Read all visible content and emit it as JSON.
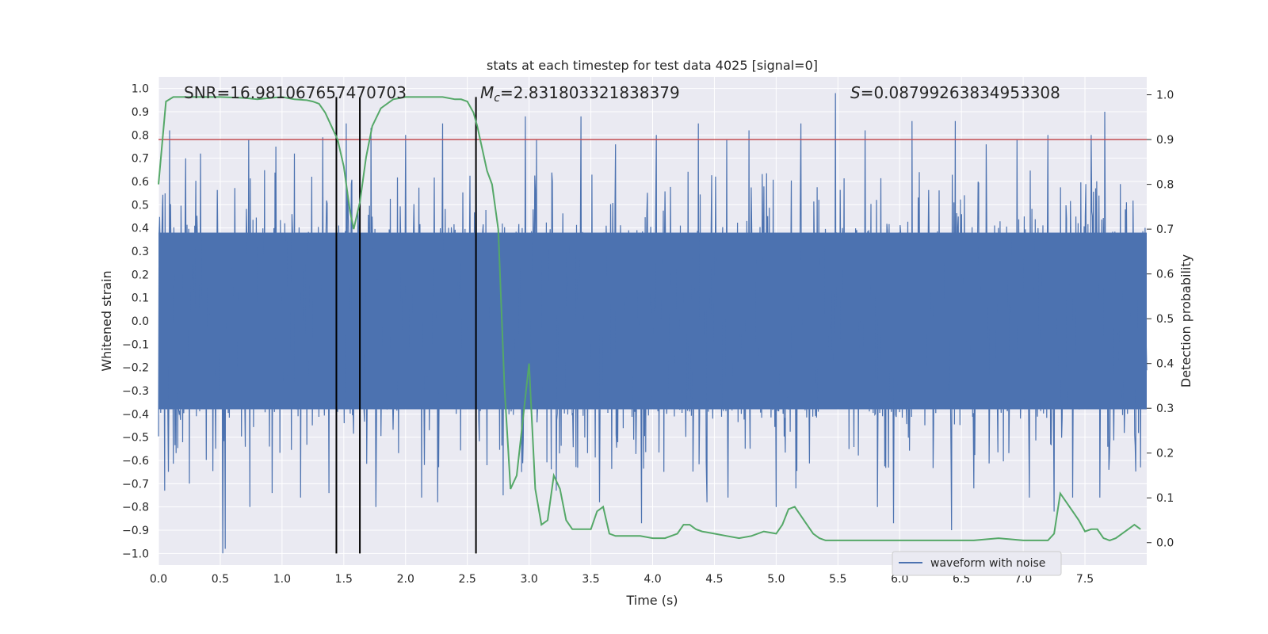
{
  "chart_data": {
    "type": "line",
    "title": "stats at each timestep for test data 4025 [signal=0]",
    "xlabel": "Time (s)",
    "ylabel_left": "Whitened strain",
    "ylabel_right": "Detection probability",
    "xlim": [
      0.0,
      8.0
    ],
    "ylim_left": [
      -1.05,
      1.05
    ],
    "ylim_right": [
      -0.05,
      1.04
    ],
    "xticks": [
      "0.0",
      "0.5",
      "1.0",
      "1.5",
      "2.0",
      "2.5",
      "3.0",
      "3.5",
      "4.0",
      "4.5",
      "5.0",
      "5.5",
      "6.0",
      "6.5",
      "7.0",
      "7.5"
    ],
    "yticks_left": [
      "1.0",
      "0.9",
      "0.8",
      "0.7",
      "0.6",
      "0.5",
      "0.4",
      "0.3",
      "0.2",
      "0.1",
      "0.0",
      "−0.1",
      "−0.2",
      "−0.3",
      "−0.4",
      "−0.5",
      "−0.6",
      "−0.7",
      "−0.8",
      "−0.9",
      "−1.0"
    ],
    "yticks_right": [
      "1.0",
      "0.9",
      "0.8",
      "0.7",
      "0.6",
      "0.5",
      "0.4",
      "0.3",
      "0.2",
      "0.1",
      "0.0"
    ],
    "annotations": {
      "snr": "SNR=16.981067657470703",
      "mc": "=2.831803321838379",
      "mc_symbol": "M",
      "mc_sub": "c",
      "s": "=0.08799263834953308",
      "s_symbol": "S"
    },
    "threshold": 0.9,
    "vertical_lines_time": [
      1.44,
      1.63,
      2.57
    ],
    "waveform": {
      "name": "waveform with noise",
      "color": "#4c72b0",
      "band_upper": 0.38,
      "band_lower": -0.38,
      "positive_peaks": [
        [
          0.05,
          0.75
        ],
        [
          0.09,
          0.82
        ],
        [
          0.22,
          0.7
        ],
        [
          0.34,
          0.72
        ],
        [
          0.52,
          0.78
        ],
        [
          0.73,
          0.78
        ],
        [
          0.95,
          0.75
        ],
        [
          1.1,
          0.72
        ],
        [
          1.33,
          0.79
        ],
        [
          1.52,
          0.85
        ],
        [
          1.72,
          0.83
        ],
        [
          2.0,
          0.8
        ],
        [
          2.3,
          0.85
        ],
        [
          2.57,
          0.85
        ],
        [
          2.97,
          0.88
        ],
        [
          3.06,
          0.78
        ],
        [
          3.42,
          0.88
        ],
        [
          3.7,
          0.76
        ],
        [
          4.03,
          0.8
        ],
        [
          4.37,
          0.85
        ],
        [
          4.6,
          0.78
        ],
        [
          4.78,
          0.82
        ],
        [
          5.2,
          0.85
        ],
        [
          5.48,
          0.98
        ],
        [
          5.72,
          0.82
        ],
        [
          6.1,
          0.86
        ],
        [
          6.45,
          0.86
        ],
        [
          6.7,
          0.76
        ],
        [
          6.95,
          0.78
        ],
        [
          7.2,
          0.8
        ],
        [
          7.55,
          0.8
        ],
        [
          7.66,
          0.9
        ]
      ],
      "negative_peaks": [
        [
          0.05,
          -0.73
        ],
        [
          0.25,
          -0.7
        ],
        [
          0.52,
          -1.0
        ],
        [
          0.54,
          -0.98
        ],
        [
          0.74,
          -0.8
        ],
        [
          0.92,
          -0.74
        ],
        [
          1.15,
          -0.76
        ],
        [
          1.38,
          -0.74
        ],
        [
          1.76,
          -0.8
        ],
        [
          2.13,
          -0.76
        ],
        [
          2.26,
          -0.78
        ],
        [
          2.79,
          -0.75
        ],
        [
          3.22,
          -0.73
        ],
        [
          3.57,
          -0.78
        ],
        [
          3.91,
          -0.87
        ],
        [
          4.44,
          -0.78
        ],
        [
          4.61,
          -0.76
        ],
        [
          5.0,
          -0.8
        ],
        [
          5.16,
          -0.72
        ],
        [
          5.82,
          -0.8
        ],
        [
          5.95,
          -0.87
        ],
        [
          6.42,
          -0.9
        ],
        [
          6.6,
          -0.72
        ],
        [
          7.05,
          -0.76
        ],
        [
          7.25,
          -0.82
        ],
        [
          7.4,
          -0.76
        ],
        [
          7.62,
          -0.76
        ],
        [
          7.95,
          -0.63
        ]
      ]
    },
    "probability": {
      "color": "#55a868",
      "x": [
        0.0,
        0.06,
        0.12,
        0.2,
        0.3,
        0.5,
        0.7,
        0.8,
        0.9,
        1.0,
        1.1,
        1.2,
        1.25,
        1.3,
        1.35,
        1.4,
        1.45,
        1.5,
        1.55,
        1.58,
        1.63,
        1.68,
        1.73,
        1.8,
        1.9,
        2.0,
        2.1,
        2.2,
        2.3,
        2.4,
        2.45,
        2.5,
        2.55,
        2.58,
        2.62,
        2.66,
        2.7,
        2.75,
        2.8,
        2.85,
        2.9,
        3.0,
        3.05,
        3.1,
        3.15,
        3.2,
        3.25,
        3.3,
        3.35,
        3.4,
        3.45,
        3.5,
        3.55,
        3.6,
        3.65,
        3.7,
        3.8,
        3.9,
        4.0,
        4.1,
        4.2,
        4.25,
        4.3,
        4.35,
        4.4,
        4.5,
        4.6,
        4.7,
        4.8,
        4.9,
        5.0,
        5.05,
        5.1,
        5.15,
        5.2,
        5.25,
        5.3,
        5.35,
        5.4,
        5.45,
        5.5,
        5.6,
        5.7,
        5.8,
        5.9,
        6.0,
        6.2,
        6.4,
        6.6,
        6.8,
        7.0,
        7.1,
        7.2,
        7.25,
        7.3,
        7.35,
        7.4,
        7.45,
        7.5,
        7.55,
        7.6,
        7.65,
        7.7,
        7.75,
        7.8,
        7.85,
        7.9,
        7.95
      ],
      "y": [
        0.8,
        0.985,
        0.995,
        0.995,
        0.995,
        0.995,
        0.993,
        0.99,
        0.993,
        0.995,
        0.99,
        0.988,
        0.985,
        0.98,
        0.96,
        0.93,
        0.9,
        0.84,
        0.74,
        0.7,
        0.76,
        0.86,
        0.93,
        0.97,
        0.99,
        0.995,
        0.995,
        0.995,
        0.995,
        0.99,
        0.99,
        0.985,
        0.96,
        0.93,
        0.88,
        0.83,
        0.8,
        0.7,
        0.35,
        0.12,
        0.15,
        0.4,
        0.12,
        0.04,
        0.05,
        0.15,
        0.12,
        0.05,
        0.03,
        0.03,
        0.03,
        0.03,
        0.07,
        0.08,
        0.02,
        0.015,
        0.015,
        0.015,
        0.01,
        0.01,
        0.02,
        0.04,
        0.04,
        0.03,
        0.025,
        0.02,
        0.015,
        0.01,
        0.015,
        0.025,
        0.02,
        0.04,
        0.075,
        0.08,
        0.06,
        0.04,
        0.02,
        0.01,
        0.005,
        0.005,
        0.005,
        0.005,
        0.005,
        0.005,
        0.005,
        0.005,
        0.005,
        0.005,
        0.005,
        0.01,
        0.005,
        0.005,
        0.005,
        0.02,
        0.11,
        0.09,
        0.07,
        0.05,
        0.025,
        0.03,
        0.03,
        0.01,
        0.005,
        0.01,
        0.02,
        0.03,
        0.04,
        0.03
      ]
    },
    "threshold_color": "#c44e52",
    "legend": {
      "label": "waveform with noise",
      "location": "lower-right"
    }
  }
}
